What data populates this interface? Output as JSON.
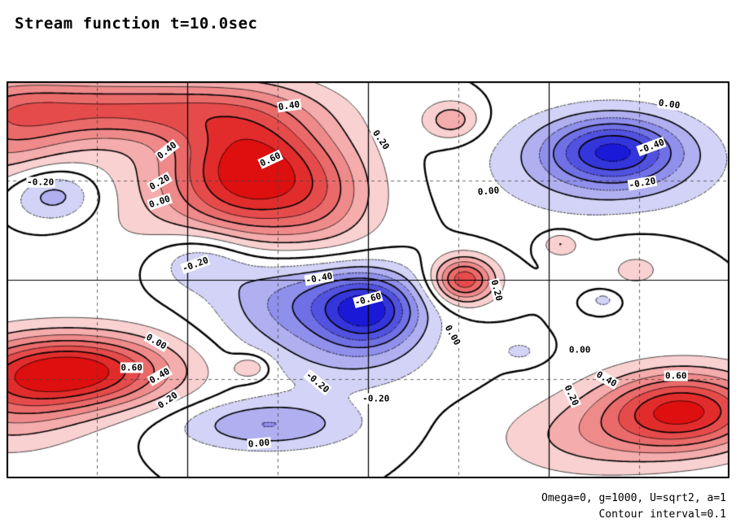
{
  "title": "Stream function t=10.0sec",
  "annotations": {
    "line1": "Omega=0, g=1000, U=sqrt2, a=1",
    "line2": "Contour interval=0.1"
  },
  "chart_data": {
    "type": "contour",
    "title": "Stream function t=10.0sec",
    "contour_interval": 0.1,
    "level_range": [
      -0.7,
      0.7
    ],
    "labeled_levels": [
      -0.6,
      -0.4,
      -0.2,
      0.0,
      0.2,
      0.4,
      0.6
    ],
    "line_style": {
      "positive": "solid",
      "negative": "dashed",
      "major_every": 0.2
    },
    "colors": {
      "positive_max": "#de0f0f",
      "negative_max": "#1919d7",
      "zero": "#ffffff",
      "grid_dashed": "#444444",
      "grid_solid": "#000000"
    },
    "grid": {
      "solid_x": [
        0.25,
        0.5,
        0.75
      ],
      "solid_y": [
        0.5
      ],
      "dashed_x": [
        0.125,
        0.375,
        0.625,
        0.875
      ],
      "dashed_y": [
        0.25,
        0.75
      ]
    },
    "features": [
      {
        "x": 0.34,
        "y": 0.22,
        "amp": 0.62,
        "sx": 0.075,
        "sy": 0.11
      },
      {
        "x": 0.3,
        "y": 0.28,
        "amp": 0.2,
        "sx": 0.14,
        "sy": 0.14
      },
      {
        "x": 0.16,
        "y": 0.07,
        "amp": 0.45,
        "sx": 0.14,
        "sy": 0.055
      },
      {
        "x": 0.44,
        "y": 0.3,
        "amp": 0.18,
        "sx": 0.05,
        "sy": 0.09
      },
      {
        "x": 0.064,
        "y": 0.285,
        "amp": -0.33,
        "sx": 0.045,
        "sy": 0.05
      },
      {
        "x": 0.0,
        "y": 0.13,
        "amp": 0.3,
        "sx": 0.07,
        "sy": 0.1
      },
      {
        "x": 0.84,
        "y": 0.175,
        "amp": -0.58,
        "sx": 0.065,
        "sy": 0.06
      },
      {
        "x": 0.82,
        "y": 0.22,
        "amp": -0.18,
        "sx": 0.13,
        "sy": 0.1
      },
      {
        "x": 0.503,
        "y": 0.575,
        "amp": -0.65,
        "sx": 0.05,
        "sy": 0.065
      },
      {
        "x": 0.4,
        "y": 0.55,
        "amp": -0.35,
        "sx": 0.075,
        "sy": 0.08
      },
      {
        "x": 0.47,
        "y": 0.7,
        "amp": -0.15,
        "sx": 0.09,
        "sy": 0.07
      },
      {
        "x": 0.633,
        "y": 0.5,
        "amp": 0.58,
        "sx": 0.03,
        "sy": 0.04
      },
      {
        "x": 0.1,
        "y": 0.73,
        "amp": 0.72,
        "sx": 0.095,
        "sy": 0.065
      },
      {
        "x": 0.0,
        "y": 0.8,
        "amp": 0.3,
        "sx": 0.08,
        "sy": 0.09
      },
      {
        "x": 0.937,
        "y": 0.83,
        "amp": 0.72,
        "sx": 0.08,
        "sy": 0.07
      },
      {
        "x": 0.8,
        "y": 0.9,
        "amp": 0.2,
        "sx": 0.09,
        "sy": 0.07
      },
      {
        "x": 0.36,
        "y": 0.865,
        "amp": -0.3,
        "sx": 0.085,
        "sy": 0.045
      },
      {
        "x": 0.616,
        "y": 0.098,
        "amp": 0.28,
        "sx": 0.028,
        "sy": 0.035
      },
      {
        "x": 0.338,
        "y": 0.72,
        "amp": 0.22,
        "sx": 0.018,
        "sy": 0.022
      },
      {
        "x": 0.766,
        "y": 0.41,
        "amp": 0.22,
        "sx": 0.018,
        "sy": 0.022
      },
      {
        "x": 0.826,
        "y": 0.55,
        "amp": -0.16,
        "sx": 0.016,
        "sy": 0.018
      },
      {
        "x": 0.27,
        "y": 0.45,
        "amp": -0.26,
        "sx": 0.05,
        "sy": 0.055
      },
      {
        "x": 0.71,
        "y": 0.68,
        "amp": -0.13,
        "sx": 0.02,
        "sy": 0.02
      },
      {
        "x": 0.87,
        "y": 0.47,
        "amp": 0.12,
        "sx": 0.05,
        "sy": 0.06
      }
    ],
    "labels": [
      {
        "text": "0.40",
        "x": 0.391,
        "y": 0.061,
        "rot": -8
      },
      {
        "text": "0.20",
        "x": 0.518,
        "y": 0.148,
        "rot": 55
      },
      {
        "text": "0.00",
        "x": 0.917,
        "y": 0.057,
        "rot": 8
      },
      {
        "text": "-0.40",
        "x": 0.892,
        "y": 0.164,
        "rot": -20
      },
      {
        "text": "-0.20",
        "x": 0.88,
        "y": 0.256,
        "rot": -10
      },
      {
        "text": "0.40",
        "x": 0.222,
        "y": 0.174,
        "rot": -38
      },
      {
        "text": "0.60",
        "x": 0.365,
        "y": 0.197,
        "rot": -25
      },
      {
        "text": "0.20",
        "x": 0.212,
        "y": 0.254,
        "rot": -30
      },
      {
        "text": "0.00",
        "x": 0.212,
        "y": 0.303,
        "rot": -18
      },
      {
        "text": "-0.20",
        "x": 0.047,
        "y": 0.254,
        "rot": 0
      },
      {
        "text": "0.00",
        "x": 0.667,
        "y": 0.277,
        "rot": -5
      },
      {
        "text": "-0.20",
        "x": 0.261,
        "y": 0.461,
        "rot": -20
      },
      {
        "text": "-0.40",
        "x": 0.432,
        "y": 0.496,
        "rot": -10
      },
      {
        "text": "-0.60",
        "x": 0.5,
        "y": 0.549,
        "rot": -15
      },
      {
        "text": "0.20",
        "x": 0.678,
        "y": 0.527,
        "rot": 75
      },
      {
        "text": "0.00",
        "x": 0.617,
        "y": 0.639,
        "rot": 60
      },
      {
        "text": "0.00",
        "x": 0.793,
        "y": 0.676,
        "rot": 0
      },
      {
        "text": "0.00",
        "x": 0.207,
        "y": 0.656,
        "rot": 30
      },
      {
        "text": "0.60",
        "x": 0.173,
        "y": 0.721,
        "rot": 0
      },
      {
        "text": "0.40",
        "x": 0.212,
        "y": 0.742,
        "rot": -30
      },
      {
        "text": "0.20",
        "x": 0.223,
        "y": 0.803,
        "rot": -35
      },
      {
        "text": "-0.20",
        "x": 0.43,
        "y": 0.758,
        "rot": 40
      },
      {
        "text": "-0.20",
        "x": 0.511,
        "y": 0.799,
        "rot": 0
      },
      {
        "text": "0.20",
        "x": 0.781,
        "y": 0.791,
        "rot": 65
      },
      {
        "text": "0.40",
        "x": 0.83,
        "y": 0.75,
        "rot": 30
      },
      {
        "text": "0.60",
        "x": 0.926,
        "y": 0.742,
        "rot": 0
      },
      {
        "text": "0.00",
        "x": 0.349,
        "y": 0.912,
        "rot": -5
      }
    ]
  }
}
